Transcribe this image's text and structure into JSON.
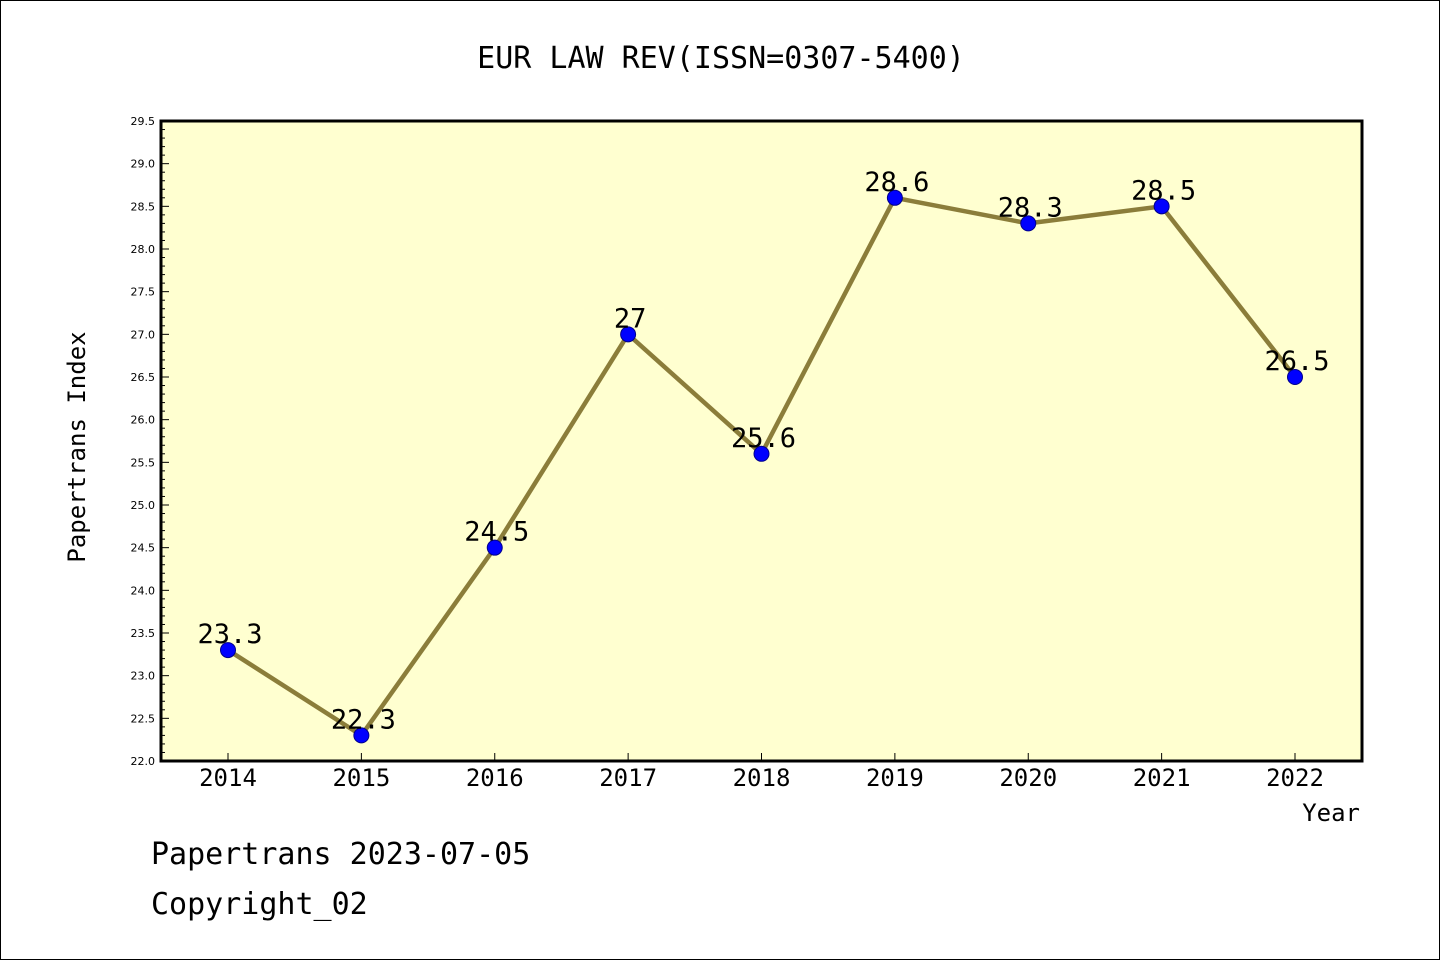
{
  "chart_data": {
    "type": "line",
    "title": "EUR LAW REV(ISSN=0307-5400)",
    "xlabel": "Year",
    "ylabel": "Papertrans Index",
    "categories": [
      "2014",
      "2015",
      "2016",
      "2017",
      "2018",
      "2019",
      "2020",
      "2021",
      "2022"
    ],
    "series": [
      {
        "values": [
          23.3,
          22.3,
          24.5,
          27,
          25.6,
          28.6,
          28.3,
          28.5,
          26.5
        ],
        "labels": [
          "23.3",
          "22.3",
          "24.5",
          "27",
          "25.6",
          "28.6",
          "28.3",
          "28.5",
          "26.5"
        ]
      }
    ],
    "ylim": [
      22.0,
      29.5
    ],
    "yticks": [
      "22.0",
      "22.5",
      "23.0",
      "23.5",
      "24.0",
      "24.5",
      "25.0",
      "25.5",
      "26.0",
      "26.5",
      "27.0",
      "27.5",
      "28.0",
      "28.5",
      "29.0",
      "29.5"
    ],
    "grid": false,
    "colors": {
      "plot_background": "#ffffd0",
      "line": "#8b7d3a",
      "marker": "#0000ff"
    }
  },
  "footer": {
    "line1": "Papertrans 2023-07-05",
    "line2": "Copyright_02"
  }
}
